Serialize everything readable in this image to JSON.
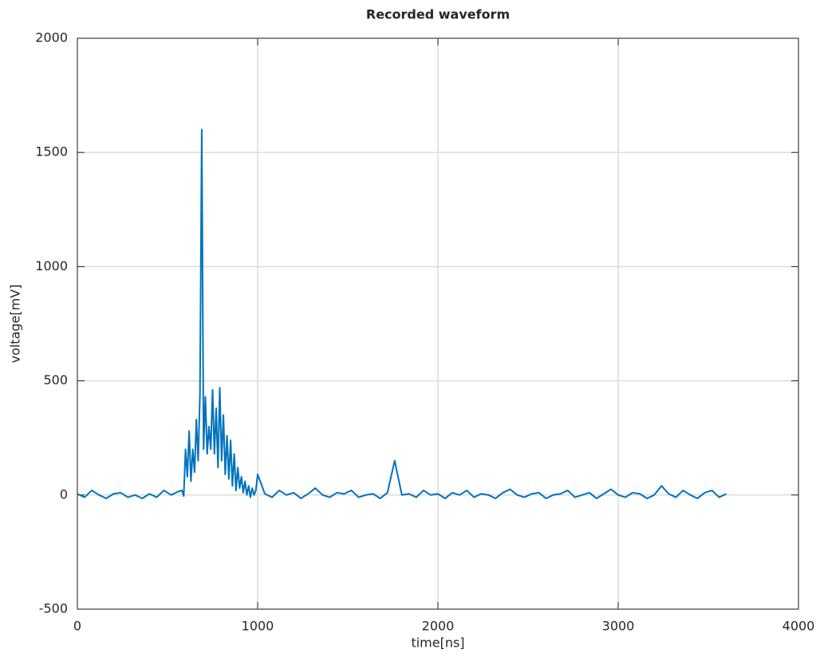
{
  "chart_data": {
    "type": "line",
    "title": "Recorded waveform",
    "xlabel": "time[ns]",
    "ylabel": "voltage[mV]",
    "x": [
      0,
      40,
      80,
      120,
      160,
      200,
      240,
      280,
      320,
      360,
      400,
      440,
      480,
      520,
      560,
      580,
      590,
      600,
      610,
      620,
      630,
      640,
      650,
      660,
      670,
      680,
      690,
      700,
      710,
      720,
      730,
      740,
      750,
      760,
      770,
      780,
      790,
      800,
      810,
      820,
      830,
      840,
      850,
      860,
      870,
      880,
      890,
      900,
      910,
      920,
      930,
      940,
      950,
      960,
      970,
      980,
      990,
      1000,
      1040,
      1080,
      1120,
      1160,
      1200,
      1240,
      1280,
      1320,
      1360,
      1400,
      1440,
      1480,
      1520,
      1560,
      1600,
      1640,
      1680,
      1720,
      1760,
      1800,
      1840,
      1880,
      1920,
      1960,
      2000,
      2040,
      2080,
      2120,
      2160,
      2200,
      2240,
      2280,
      2320,
      2360,
      2400,
      2440,
      2480,
      2520,
      2560,
      2600,
      2640,
      2680,
      2720,
      2760,
      2800,
      2840,
      2880,
      2920,
      2960,
      3000,
      3040,
      3080,
      3120,
      3160,
      3200,
      3240,
      3280,
      3320,
      3360,
      3400,
      3440,
      3480,
      3520,
      3560,
      3600
    ],
    "series": [
      {
        "color": "#0072bd",
        "values": [
          5,
          -10,
          20,
          0,
          -15,
          5,
          10,
          -10,
          0,
          -15,
          5,
          -10,
          20,
          0,
          15,
          20,
          -5,
          200,
          80,
          280,
          60,
          200,
          100,
          330,
          150,
          440,
          1600,
          200,
          430,
          180,
          300,
          200,
          460,
          180,
          380,
          120,
          470,
          150,
          350,
          90,
          260,
          70,
          240,
          40,
          180,
          20,
          120,
          30,
          80,
          10,
          60,
          0,
          40,
          -10,
          30,
          0,
          20,
          90,
          5,
          -10,
          20,
          0,
          10,
          -15,
          5,
          30,
          0,
          -10,
          10,
          5,
          20,
          -10,
          0,
          5,
          -15,
          10,
          150,
          0,
          5,
          -10,
          20,
          0,
          5,
          -15,
          10,
          0,
          20,
          -10,
          5,
          0,
          -15,
          10,
          25,
          0,
          -10,
          5,
          10,
          -15,
          0,
          5,
          20,
          -10,
          0,
          10,
          -15,
          5,
          25,
          0,
          -10,
          10,
          5,
          -15,
          0,
          40,
          5,
          -10,
          20,
          0,
          -15,
          10,
          20,
          -10,
          5
        ]
      }
    ],
    "xlim": [
      0,
      4000
    ],
    "xticks": [
      0,
      1000,
      2000,
      3000,
      4000
    ],
    "ylim": [
      -500,
      2000
    ],
    "yticks": [
      -500,
      0,
      500,
      1000,
      1500,
      2000
    ],
    "grid": true
  }
}
